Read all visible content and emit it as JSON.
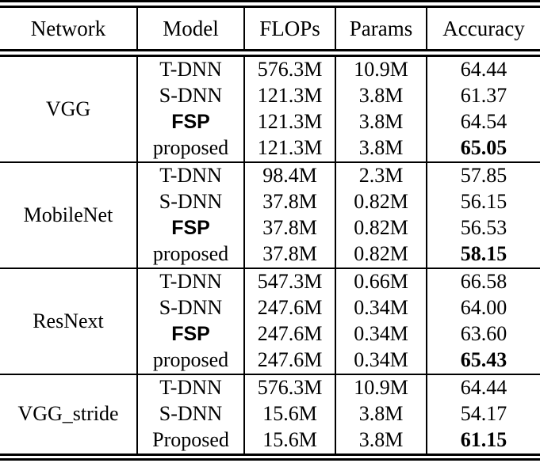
{
  "table": {
    "columns": [
      {
        "label": "Network"
      },
      {
        "label": "Model"
      },
      {
        "label": "FLOPs"
      },
      {
        "label": "Params"
      },
      {
        "label": "Accuracy"
      }
    ],
    "groups": [
      {
        "network": "VGG",
        "rows": [
          {
            "model": "T-DNN",
            "flops": "576.3M",
            "params": "10.9M",
            "accuracy": "64.44"
          },
          {
            "model": "S-DNN",
            "flops": "121.3M",
            "params": "3.8M",
            "accuracy": "61.37"
          },
          {
            "model": "FSP",
            "flops": "121.3M",
            "params": "3.8M",
            "accuracy": "64.54"
          },
          {
            "model": "proposed",
            "flops": "121.3M",
            "params": "3.8M",
            "accuracy": "65.05"
          }
        ]
      },
      {
        "network": "MobileNet",
        "rows": [
          {
            "model": "T-DNN",
            "flops": "98.4M",
            "params": "2.3M",
            "accuracy": "57.85"
          },
          {
            "model": "S-DNN",
            "flops": "37.8M",
            "params": "0.82M",
            "accuracy": "56.15"
          },
          {
            "model": "FSP",
            "flops": "37.8M",
            "params": "0.82M",
            "accuracy": "56.53"
          },
          {
            "model": "proposed",
            "flops": "37.8M",
            "params": "0.82M",
            "accuracy": "58.15"
          }
        ]
      },
      {
        "network": "ResNext",
        "rows": [
          {
            "model": "T-DNN",
            "flops": "547.3M",
            "params": "0.66M",
            "accuracy": "66.58"
          },
          {
            "model": "S-DNN",
            "flops": "247.6M",
            "params": "0.34M",
            "accuracy": "64.00"
          },
          {
            "model": "FSP",
            "flops": "247.6M",
            "params": "0.34M",
            "accuracy": "63.60"
          },
          {
            "model": "proposed",
            "flops": "247.6M",
            "params": "0.34M",
            "accuracy": "65.43"
          }
        ]
      },
      {
        "network": "VGG_stride",
        "rows": [
          {
            "model": "T-DNN",
            "flops": "576.3M",
            "params": "10.9M",
            "accuracy": "64.44"
          },
          {
            "model": "S-DNN",
            "flops": "15.6M",
            "params": "3.8M",
            "accuracy": "54.17"
          },
          {
            "model": "Proposed",
            "flops": "15.6M",
            "params": "3.8M",
            "accuracy": "61.15"
          }
        ]
      }
    ]
  }
}
